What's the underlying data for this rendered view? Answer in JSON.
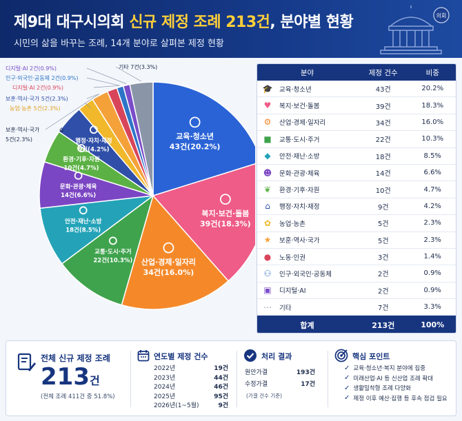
{
  "header": {
    "title_pre": "제9대 대구시의회 ",
    "title_hl": "신규 제정 조례 213건",
    "title_post": ", 분야별 현황",
    "subtitle": "시민의 삶을 바꾸는 조례, 14개 분야로 살펴본 제정 현황",
    "seal_text": "의회"
  },
  "colors": {
    "navy": "#17357f",
    "accent": "#ffcf3a"
  },
  "chart_data": {
    "type": "pie",
    "total": 213,
    "unit": "건",
    "slices": [
      {
        "name": "교육·청소년",
        "value": 43,
        "percent": 20.2,
        "color": "#2a63d6",
        "icon": "graduation-cap-icon"
      },
      {
        "name": "복지·보건·돌봄",
        "value": 39,
        "percent": 18.3,
        "color": "#ee5c87",
        "icon": "heart-hand-icon"
      },
      {
        "name": "산업·경제·일자리",
        "value": 34,
        "percent": 16.0,
        "color": "#f5892a",
        "icon": "gear-icon"
      },
      {
        "name": "교통·도시·주거",
        "value": 22,
        "percent": 10.3,
        "color": "#3fa34d",
        "icon": "bus-icon"
      },
      {
        "name": "안전·재난·소방",
        "value": 18,
        "percent": 8.5,
        "color": "#24a3b8",
        "icon": "shield-icon"
      },
      {
        "name": "문화·관광·체육",
        "value": 14,
        "percent": 6.6,
        "color": "#7b46c3",
        "icon": "mask-icon"
      },
      {
        "name": "환경·기후·자원",
        "value": 10,
        "percent": 4.7,
        "color": "#5bb144",
        "icon": "leaf-icon"
      },
      {
        "name": "행정·자치·재정",
        "value": 9,
        "percent": 4.2,
        "color": "#2f4fa8",
        "icon": "building-icon"
      },
      {
        "name": "농업·농촌",
        "value": 5,
        "percent": 2.3,
        "color": "#f0b82a",
        "icon": "sprout-icon"
      },
      {
        "name": "보훈·역사·국가",
        "value": 5,
        "percent": 2.3,
        "color": "#f5a13a",
        "icon": "star-shield-icon"
      },
      {
        "name": "노동·인권",
        "value": 3,
        "percent": 1.4,
        "color": "#d8455a",
        "icon": "person-icon"
      },
      {
        "name": "인구·외국인·공동체",
        "value": 2,
        "percent": 0.9,
        "color": "#2d74c8",
        "icon": "people-icon"
      },
      {
        "name": "디지털·AI",
        "value": 2,
        "percent": 0.9,
        "color": "#7a4cc8",
        "icon": "chip-icon"
      },
      {
        "name": "기타",
        "value": 7,
        "percent": 3.3,
        "color": "#8a96a8",
        "icon": "dots-icon"
      }
    ],
    "inside_labels": [
      {
        "idx": 0,
        "line1": "교육·청소년",
        "line2": "43건(20.2%)"
      },
      {
        "idx": 1,
        "line1": "복지·보건·돌봄",
        "line2": "39건(18.3%)"
      },
      {
        "idx": 2,
        "line1": "산업·경제·일자리",
        "line2": "34건(16.0%)"
      },
      {
        "idx": 3,
        "line1": "교통·도시·주거",
        "line2": "22건(10.3%)"
      },
      {
        "idx": 4,
        "line1": "안전·재난·소방",
        "line2": "18건(8.5%)"
      },
      {
        "idx": 5,
        "line1": "문화·관광·체육",
        "line2": "14건(6.6%)"
      },
      {
        "idx": 6,
        "line1": "환경·기후·자원",
        "line2": "10건(4.7%)"
      },
      {
        "idx": 7,
        "line1": "행정·자치·재정",
        "line2": "9건(4.2%)"
      }
    ],
    "outside_labels": [
      {
        "text": "디지털·AI 2건(0.9%)",
        "color": "#7a4cc8"
      },
      {
        "text": "인구·외국인·공동체 2건(0.9%)",
        "color": "#2d74c8"
      },
      {
        "text": "디지털·AI 2건(0.9%)",
        "color": "#d8455a"
      },
      {
        "text": "보훈·역사·국가 5건(2.3%)",
        "color": "#2f4fa8"
      },
      {
        "text": "농업·농촌 5건(2.3%)",
        "color": "#e0a020"
      },
      {
        "text": "보훈·역사·국가",
        "color": "#1b2a4a"
      },
      {
        "text": "5건(2.3%)",
        "color": "#1b2a4a"
      },
      {
        "text": "기타 7건(3.3%)",
        "color": "#1b2a4a"
      }
    ]
  },
  "table": {
    "headers": [
      "분야",
      "제정 건수",
      "비중"
    ],
    "rows": [
      {
        "name": "교육·청소년",
        "count": "43건",
        "pct": "20.2%",
        "icon_char": "🎓",
        "icon_color": "#2a63d6"
      },
      {
        "name": "복지·보건·돌봄",
        "count": "39건",
        "pct": "18.3%",
        "icon_char": "♥",
        "icon_color": "#ee5c87"
      },
      {
        "name": "산업·경제·일자리",
        "count": "34건",
        "pct": "16.0%",
        "icon_char": "⚙",
        "icon_color": "#f5892a"
      },
      {
        "name": "교통·도시·주거",
        "count": "22건",
        "pct": "10.3%",
        "icon_char": "■",
        "icon_color": "#3fa34d"
      },
      {
        "name": "안전·재난·소방",
        "count": "18건",
        "pct": "8.5%",
        "icon_char": "◆",
        "icon_color": "#24a3b8"
      },
      {
        "name": "문화·관광·체육",
        "count": "14건",
        "pct": "6.6%",
        "icon_char": "☻",
        "icon_color": "#7b46c3"
      },
      {
        "name": "환경·기후·자원",
        "count": "10건",
        "pct": "4.7%",
        "icon_char": "❦",
        "icon_color": "#5bb144"
      },
      {
        "name": "행정·자치·재정",
        "count": "9건",
        "pct": "4.2%",
        "icon_char": "⌂",
        "icon_color": "#2f4fa8"
      },
      {
        "name": "농업·농촌",
        "count": "5건",
        "pct": "2.3%",
        "icon_char": "✿",
        "icon_color": "#f0b82a"
      },
      {
        "name": "보훈·역사·국가",
        "count": "5건",
        "pct": "2.3%",
        "icon_char": "★",
        "icon_color": "#f5a13a"
      },
      {
        "name": "노동·인권",
        "count": "3건",
        "pct": "1.4%",
        "icon_char": "●",
        "icon_color": "#d8455a"
      },
      {
        "name": "인구·외국인·공동체",
        "count": "2건",
        "pct": "0.9%",
        "icon_char": "⚇",
        "icon_color": "#2d74c8"
      },
      {
        "name": "디지털·AI",
        "count": "2건",
        "pct": "0.9%",
        "icon_char": "▣",
        "icon_color": "#7a4cc8"
      },
      {
        "name": "기타",
        "count": "7건",
        "pct": "3.3%",
        "icon_char": "⋯",
        "icon_color": "#8a96a8"
      }
    ],
    "footer": {
      "label": "합계",
      "count": "213건",
      "pct": "100%"
    }
  },
  "summary": {
    "total": {
      "title": "전체 신규 제정 조례",
      "number": "213",
      "unit": "건",
      "note": "(전체 조례 411건 중 51.8%)"
    },
    "yearly": {
      "title": "연도별 제정 건수",
      "rows": [
        {
          "year": "2022년",
          "count": "19건"
        },
        {
          "year": "2023년",
          "count": "44건"
        },
        {
          "year": "2024년",
          "count": "46건"
        },
        {
          "year": "2025년",
          "count": "95건"
        },
        {
          "year": "2026년(1~5월)",
          "count": "9건"
        }
      ]
    },
    "result": {
      "title": "처리 결과",
      "rows": [
        {
          "k": "원안가결",
          "v": "193건"
        },
        {
          "k": "수정가결",
          "v": "17건"
        }
      ],
      "note": "(가결 건수 기준)"
    },
    "points": {
      "title": "핵심 포인트",
      "items": [
        "교육·청소년·복지 분야에 집중",
        "미래산업·AI 등 신산업 조례 확대",
        "생활밀착형 조례 다양화",
        "제정 이후 예산·집행 등 후속 점검 필요"
      ]
    }
  }
}
